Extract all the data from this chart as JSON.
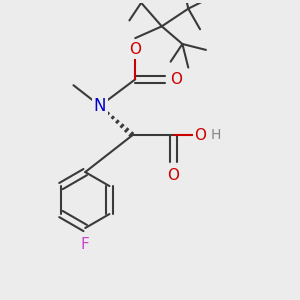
{
  "background_color": "#ececec",
  "atom_colors": {
    "C": "#3a3a3a",
    "N": "#0000cc",
    "O": "#cc0000",
    "F": "#cc44cc",
    "H": "#888888",
    "default": "#3a3a3a"
  },
  "bond_color": "#3a3a3a",
  "bond_width": 1.5,
  "dbo": 0.012,
  "fs": 11
}
